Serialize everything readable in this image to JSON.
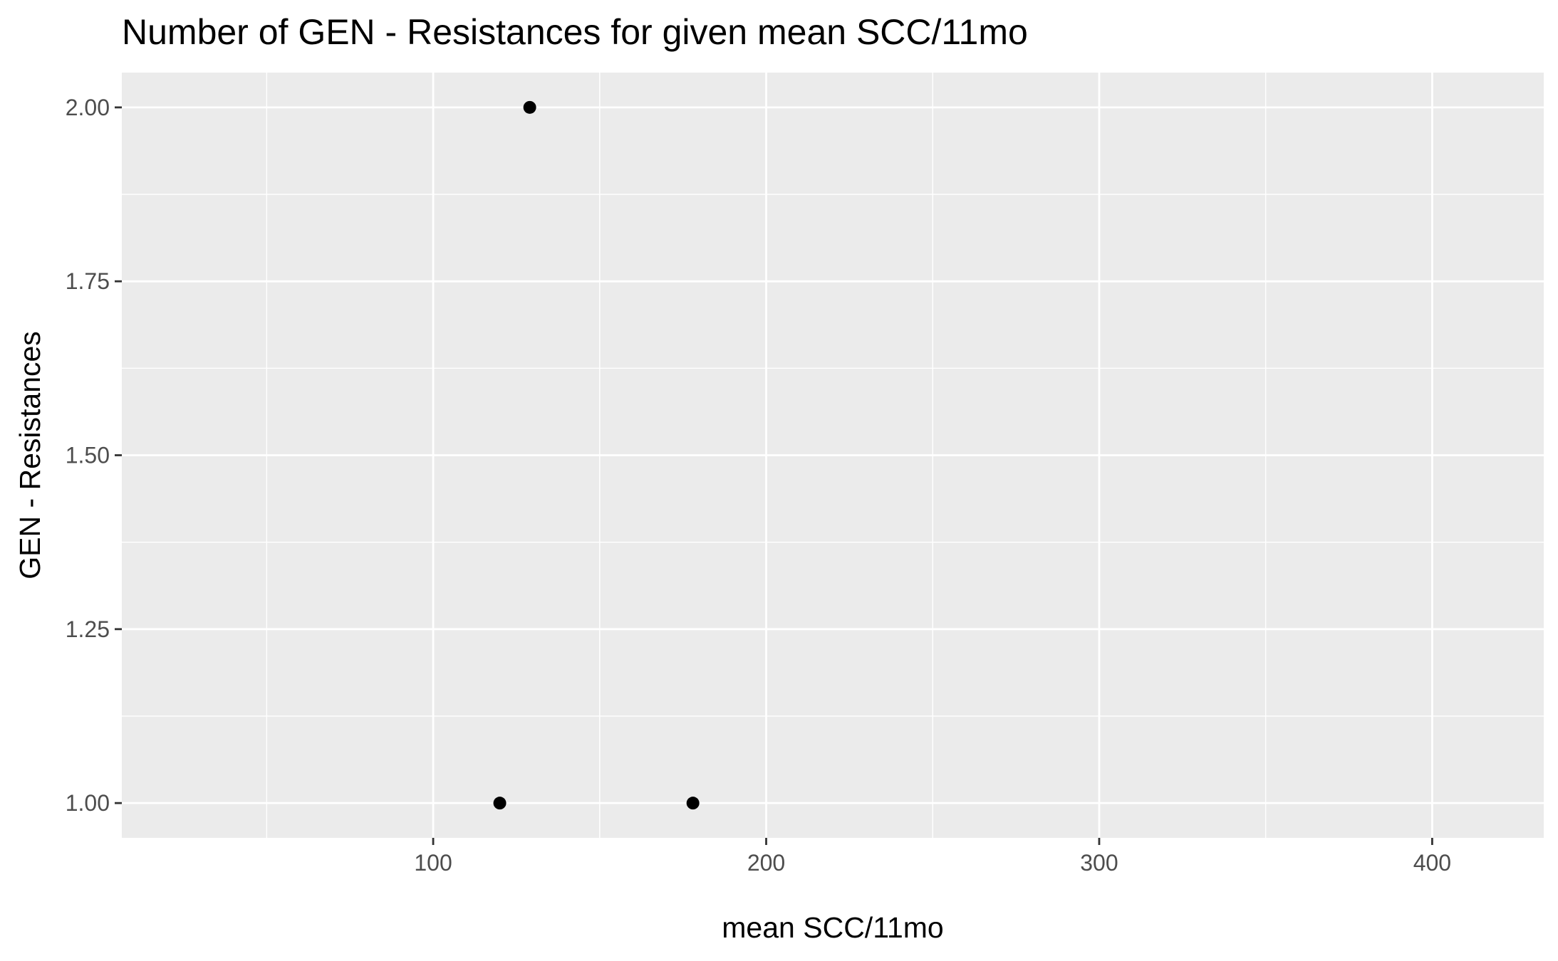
{
  "chart_data": {
    "type": "scatter",
    "title": "Number of GEN - Resistances for given mean SCC/11mo",
    "xlabel": "mean SCC/11mo",
    "ylabel": "GEN - Resistances",
    "xlim": [
      6.5,
      433.5
    ],
    "ylim": [
      0.95,
      2.05
    ],
    "x_ticks": [
      100,
      200,
      300,
      400
    ],
    "x_tick_labels": [
      "100",
      "200",
      "300",
      "400"
    ],
    "x_minor_grid": [
      50,
      150,
      250,
      350
    ],
    "y_ticks": [
      1.0,
      1.25,
      1.5,
      1.75,
      2.0
    ],
    "y_tick_labels": [
      "1.00",
      "1.25",
      "1.50",
      "1.75",
      "2.00"
    ],
    "y_minor_grid": [
      1.125,
      1.375,
      1.625,
      1.875
    ],
    "grid": true,
    "legend": "none",
    "colors": {
      "panel_background": "#ebebeb",
      "grid": "#ffffff",
      "point": "#000000",
      "tick": "#333333"
    },
    "points": [
      {
        "x": 129,
        "y": 2.0
      },
      {
        "x": 120,
        "y": 1.0
      },
      {
        "x": 178,
        "y": 1.0
      }
    ]
  }
}
